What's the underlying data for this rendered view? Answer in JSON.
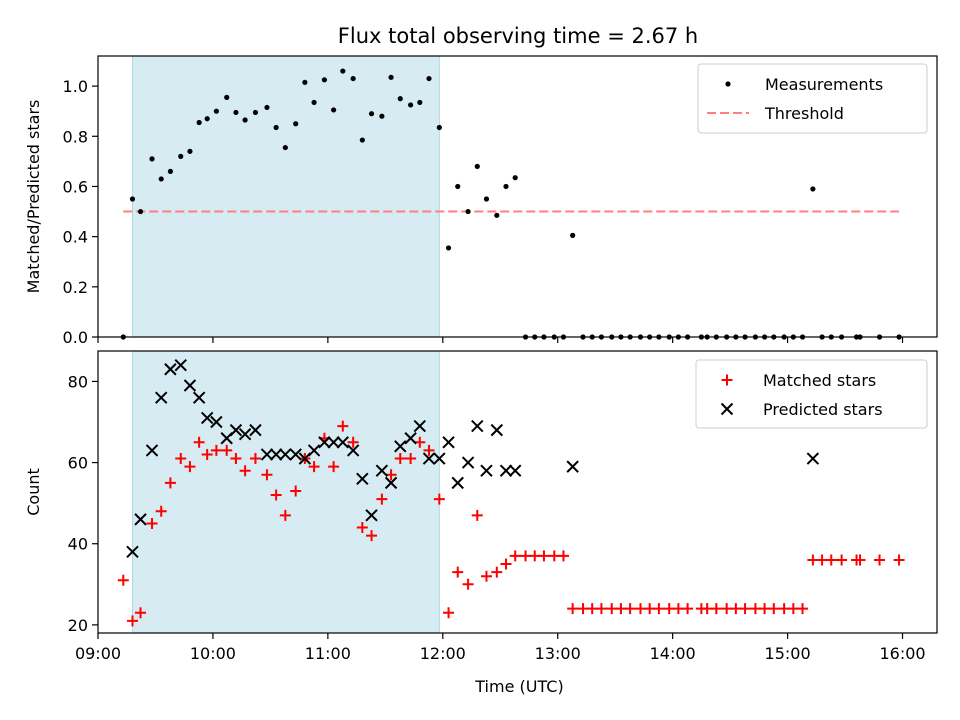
{
  "title": "Flux total observing time = 2.67 h",
  "colors": {
    "highlight": "#add8e6",
    "measurement": "#000000",
    "threshold": "#ff7f7f",
    "matched": "#ff0000",
    "predicted": "#000000"
  },
  "chart_data": [
    {
      "type": "scatter",
      "panel": "top",
      "ylabel": "Matched/Predicted stars",
      "xlim": [
        9.0,
        16.3
      ],
      "ylim": [
        0.0,
        1.12
      ],
      "yticks": [
        0.0,
        0.2,
        0.4,
        0.6,
        0.8,
        1.0
      ],
      "ytick_labels": [
        "0.0",
        "0.2",
        "0.4",
        "0.6",
        "0.8",
        "1.0"
      ],
      "legend_position": "top-right",
      "highlight_span": [
        9.3,
        11.97
      ],
      "threshold": {
        "name": "Threshold",
        "y": 0.5,
        "x": [
          9.22,
          15.97
        ]
      },
      "series": [
        {
          "name": "Measurements",
          "x": [
            9.22,
            9.3,
            9.37,
            9.47,
            9.55,
            9.63,
            9.72,
            9.8,
            9.88,
            9.95,
            10.03,
            10.12,
            10.2,
            10.28,
            10.37,
            10.47,
            10.55,
            10.63,
            10.72,
            10.8,
            10.88,
            10.97,
            11.05,
            11.13,
            11.22,
            11.3,
            11.38,
            11.47,
            11.55,
            11.63,
            11.72,
            11.8,
            11.88,
            11.97,
            12.05,
            12.13,
            12.22,
            12.3,
            12.38,
            12.47,
            12.55,
            12.63,
            12.72,
            12.8,
            12.88,
            12.97,
            13.05,
            13.13,
            13.22,
            13.3,
            13.38,
            13.47,
            13.55,
            13.63,
            13.72,
            13.8,
            13.88,
            13.97,
            14.05,
            14.13,
            14.25,
            14.3,
            14.38,
            14.47,
            14.55,
            14.63,
            14.72,
            14.8,
            14.88,
            14.97,
            15.05,
            15.13,
            15.22,
            15.3,
            15.38,
            15.47,
            15.6,
            15.63,
            15.8,
            15.97
          ],
          "y": [
            0.0,
            0.55,
            0.5,
            0.71,
            0.63,
            0.66,
            0.72,
            0.74,
            0.855,
            0.87,
            0.9,
            0.955,
            0.895,
            0.865,
            0.895,
            0.915,
            0.835,
            0.755,
            0.85,
            1.015,
            0.935,
            1.025,
            0.905,
            1.06,
            1.03,
            0.785,
            0.89,
            0.88,
            1.035,
            0.95,
            0.925,
            0.935,
            1.03,
            0.835,
            0.355,
            0.6,
            0.5,
            0.68,
            0.55,
            0.485,
            0.6,
            0.635,
            0.0,
            0.0,
            0.0,
            0.0,
            0.0,
            0.405,
            0.0,
            0.0,
            0.0,
            0.0,
            0.0,
            0.0,
            0.0,
            0.0,
            0.0,
            0.0,
            0.0,
            0.0,
            0.0,
            0.0,
            0.0,
            0.0,
            0.0,
            0.0,
            0.0,
            0.0,
            0.0,
            0.0,
            0.0,
            0.0,
            0.59,
            0.0,
            0.0,
            0.0,
            0.0,
            0.0,
            0.0,
            0.0
          ]
        }
      ]
    },
    {
      "type": "scatter",
      "panel": "bottom",
      "xlabel": "Time (UTC)",
      "ylabel": "Count",
      "xlim": [
        9.0,
        16.3
      ],
      "ylim": [
        18.0,
        87.5
      ],
      "yticks": [
        20,
        40,
        60,
        80
      ],
      "ytick_labels": [
        "20",
        "40",
        "60",
        "80"
      ],
      "xticks": [
        9,
        10,
        11,
        12,
        13,
        14,
        15,
        16
      ],
      "xtick_labels": [
        "09:00",
        "10:00",
        "11:00",
        "12:00",
        "13:00",
        "14:00",
        "15:00",
        "16:00"
      ],
      "legend_position": "top-right",
      "highlight_span": [
        9.3,
        11.97
      ],
      "series": [
        {
          "name": "Matched stars",
          "x": [
            9.22,
            9.3,
            9.37,
            9.47,
            9.55,
            9.63,
            9.72,
            9.8,
            9.88,
            9.95,
            10.03,
            10.12,
            10.2,
            10.28,
            10.37,
            10.47,
            10.55,
            10.63,
            10.72,
            10.8,
            10.88,
            10.97,
            11.05,
            11.13,
            11.22,
            11.3,
            11.38,
            11.47,
            11.55,
            11.63,
            11.72,
            11.8,
            11.88,
            11.97,
            12.05,
            12.13,
            12.22,
            12.3,
            12.38,
            12.47,
            12.55,
            12.63,
            12.72,
            12.8,
            12.88,
            12.97,
            13.05,
            13.13,
            13.22,
            13.3,
            13.38,
            13.47,
            13.55,
            13.63,
            13.72,
            13.8,
            13.88,
            13.97,
            14.05,
            14.13,
            14.25,
            14.3,
            14.38,
            14.47,
            14.55,
            14.63,
            14.72,
            14.8,
            14.88,
            14.97,
            15.05,
            15.13,
            15.22,
            15.3,
            15.38,
            15.47,
            15.6,
            15.63,
            15.8,
            15.97
          ],
          "y": [
            31,
            21,
            23,
            45,
            48,
            55,
            61,
            59,
            65,
            62,
            63,
            63,
            61,
            58,
            61,
            57,
            52,
            47,
            53,
            61,
            59,
            66,
            59,
            69,
            65,
            44,
            42,
            51,
            57,
            61,
            61,
            65,
            63,
            51,
            23,
            33,
            30,
            47,
            32,
            33,
            35,
            37,
            37,
            37,
            37,
            37,
            37,
            24,
            24,
            24,
            24,
            24,
            24,
            24,
            24,
            24,
            24,
            24,
            24,
            24,
            24,
            24,
            24,
            24,
            24,
            24,
            24,
            24,
            24,
            24,
            24,
            24,
            36,
            36,
            36,
            36,
            36,
            36,
            36,
            36
          ]
        },
        {
          "name": "Predicted stars",
          "x": [
            9.3,
            9.37,
            9.47,
            9.55,
            9.63,
            9.72,
            9.8,
            9.88,
            9.95,
            10.03,
            10.12,
            10.2,
            10.28,
            10.37,
            10.47,
            10.55,
            10.63,
            10.72,
            10.8,
            10.88,
            10.97,
            11.05,
            11.13,
            11.22,
            11.3,
            11.38,
            11.47,
            11.55,
            11.63,
            11.72,
            11.8,
            11.88,
            11.97,
            12.05,
            12.13,
            12.22,
            12.3,
            12.38,
            12.47,
            12.55,
            12.63,
            13.13,
            15.22
          ],
          "y": [
            38,
            46,
            63,
            76,
            83,
            84,
            79,
            76,
            71,
            70,
            66,
            68,
            67,
            68,
            62,
            62,
            62,
            62,
            61,
            63,
            65,
            65,
            65,
            63,
            56,
            47,
            58,
            55,
            64,
            66,
            69,
            61,
            61,
            65,
            55,
            60,
            69,
            58,
            68,
            58,
            58,
            59,
            61
          ]
        }
      ]
    }
  ]
}
